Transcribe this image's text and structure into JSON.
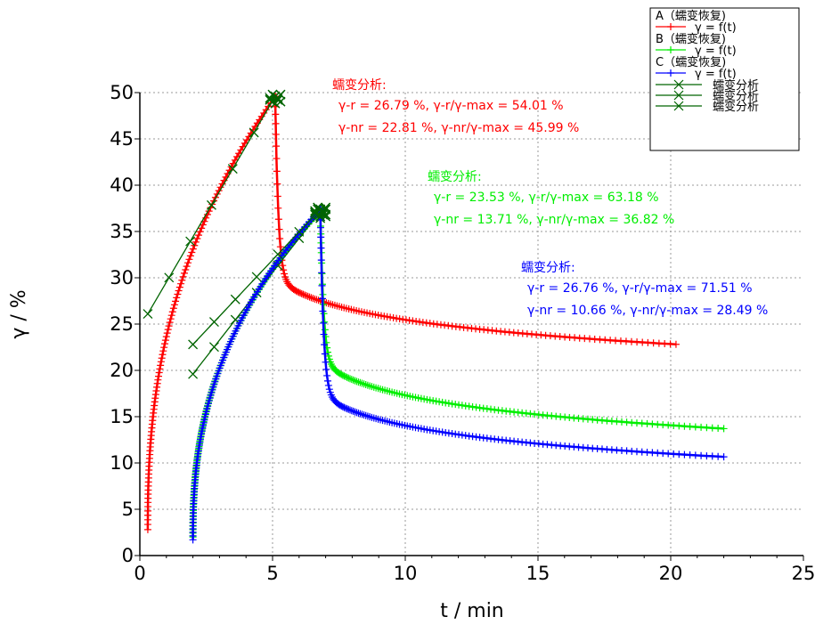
{
  "chart_data": {
    "type": "line",
    "xlabel": "t / min",
    "ylabel": "γ / %",
    "xlim": [
      0,
      25
    ],
    "ylim": [
      0,
      50
    ],
    "xticks": [
      0,
      5,
      10,
      15,
      20,
      25
    ],
    "yticks": [
      0,
      5,
      10,
      15,
      20,
      25,
      30,
      35,
      40,
      45,
      50
    ],
    "grid": true,
    "legend_position": "top-right",
    "legend": [
      {
        "title": "A（蠕变恢复)",
        "entry": "γ = f(t)",
        "color": "#ff0000"
      },
      {
        "title": "B（蠕变恢复)",
        "entry": "γ = f(t)",
        "color": "#00ee00"
      },
      {
        "title": "C（蠕变恢复)",
        "entry": "γ = f(t)",
        "color": "#0000ff"
      },
      {
        "title": "",
        "entry": "蠕变分析",
        "color": "#006400"
      },
      {
        "title": "",
        "entry": "蠕变分析",
        "color": "#006400"
      },
      {
        "title": "",
        "entry": "蠕变分析",
        "color": "#006400"
      }
    ],
    "series": [
      {
        "color": "#ff0000",
        "creep": {
          "t0": 0.3,
          "t1": 5.1,
          "g0": 2.8,
          "g1": 49.6
        },
        "recovery": {
          "t1": 5.1,
          "t2": 20.2,
          "g_start": 49.6,
          "g_end": 22.81,
          "g_mid": 30.0
        },
        "fit_line": {
          "x": [
            0.3,
            5.1
          ],
          "y": [
            26.1,
            49.6
          ]
        },
        "annotation": {
          "title": "蠕变分析:",
          "line1": "γ-r = 26.79 %,   γ-r/γ-max = 54.01 %",
          "line2": "γ-nr = 22.81 %,   γ-nr/γ-max = 45.99 %"
        }
      },
      {
        "color": "#00ee00",
        "creep": {
          "t0": 2.0,
          "t1": 6.8,
          "g0": 2.0,
          "g1": 37.2
        },
        "recovery": {
          "t1": 6.8,
          "t2": 22.0,
          "g_start": 37.2,
          "g_end": 13.71,
          "g_mid": 21.0
        },
        "fit_line": {
          "x": [
            2.0,
            6.8
          ],
          "y": [
            19.6,
            37.2
          ]
        },
        "annotation": {
          "title": "蠕变分析:",
          "line1": "γ-r = 23.53 %,   γ-r/γ-max = 63.18 %",
          "line2": "γ-nr = 13.71 %,   γ-nr/γ-max = 36.82 %"
        }
      },
      {
        "color": "#0000ff",
        "creep": {
          "t0": 2.0,
          "t1": 6.8,
          "g0": 1.7,
          "g1": 37.4
        },
        "recovery": {
          "t1": 6.8,
          "t2": 22.0,
          "g_start": 37.4,
          "g_end": 10.66,
          "g_mid": 17.5
        },
        "fit_line": {
          "x": [
            2.0,
            6.8
          ],
          "y": [
            22.8,
            37.4
          ]
        },
        "annotation": {
          "title": "蠕变分析:",
          "line1": "γ-r = 26.76 %,   γ-r/γ-max = 71.51 %",
          "line2": "γ-nr = 10.66 %,   γ-nr/γ-max = 28.49 %"
        }
      }
    ]
  }
}
